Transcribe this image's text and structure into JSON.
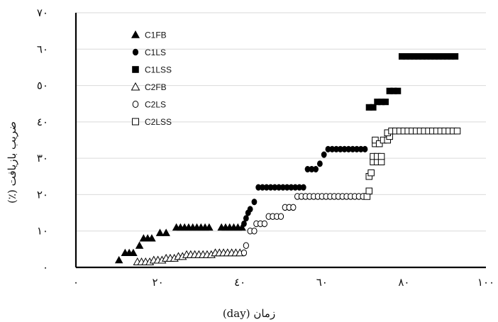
{
  "chart_data": {
    "type": "scatter",
    "title": "",
    "xlabel": "زمان (day)",
    "ylabel": "ضریب بازیافت (٪)",
    "xlim": [
      0,
      100
    ],
    "ylim": [
      0,
      70
    ],
    "x_ticks": [
      0,
      20,
      40,
      60,
      80,
      100
    ],
    "x_tick_labels": [
      "٠",
      "٢٠",
      "٤٠",
      "٦٠",
      "٨٠",
      "١٠٠"
    ],
    "y_ticks": [
      10,
      20,
      30,
      40,
      50,
      60,
      70
    ],
    "y_tick_labels": [
      "١٠",
      "٢٠",
      "٣٠",
      "٤٠",
      "٥٠",
      "٦٠",
      "٧٠"
    ],
    "y_origin_label": "٠",
    "grid": "horizontal",
    "legend_position": "top-left",
    "series": [
      {
        "name": "C1FB",
        "marker": "triangle",
        "filled": true,
        "color": "#000000",
        "points": [
          [
            10.5,
            2
          ],
          [
            12,
            4
          ],
          [
            13,
            4
          ],
          [
            14,
            4
          ],
          [
            15.5,
            6
          ],
          [
            16.5,
            8
          ],
          [
            17.5,
            8
          ],
          [
            18.5,
            8
          ],
          [
            20.5,
            9.5
          ],
          [
            22,
            9.5
          ],
          [
            24.5,
            11
          ],
          [
            25.5,
            11
          ],
          [
            26.5,
            11
          ],
          [
            27.5,
            11
          ],
          [
            28.5,
            11
          ],
          [
            29.5,
            11
          ],
          [
            30.5,
            11
          ],
          [
            31.5,
            11
          ],
          [
            32.5,
            11
          ],
          [
            35.5,
            11
          ],
          [
            36.5,
            11
          ],
          [
            37.5,
            11
          ],
          [
            38.5,
            11
          ],
          [
            39.5,
            11
          ],
          [
            40.5,
            11
          ]
        ]
      },
      {
        "name": "C1LS",
        "marker": "circle",
        "filled": true,
        "color": "#000000",
        "points": [
          [
            41,
            12
          ],
          [
            41.5,
            13.5
          ],
          [
            42,
            15
          ],
          [
            42.5,
            16
          ],
          [
            43.5,
            18
          ],
          [
            44.5,
            22
          ],
          [
            45.5,
            22
          ],
          [
            46.5,
            22
          ],
          [
            47.5,
            22
          ],
          [
            48.5,
            22
          ],
          [
            49.5,
            22
          ],
          [
            50.5,
            22
          ],
          [
            51.5,
            22
          ],
          [
            52.5,
            22
          ],
          [
            53.5,
            22
          ],
          [
            54.5,
            22
          ],
          [
            55.5,
            22
          ],
          [
            56.5,
            27
          ],
          [
            57.5,
            27
          ],
          [
            58.5,
            27
          ],
          [
            59.5,
            28.5
          ],
          [
            60.5,
            31
          ],
          [
            61.5,
            32.5
          ],
          [
            62.5,
            32.5
          ],
          [
            63.5,
            32.5
          ],
          [
            64.5,
            32.5
          ],
          [
            65.5,
            32.5
          ],
          [
            66.5,
            32.5
          ],
          [
            67.5,
            32.5
          ],
          [
            68.5,
            32.5
          ],
          [
            69.5,
            32.5
          ],
          [
            70.5,
            32.5
          ]
        ]
      },
      {
        "name": "C1LSS",
        "marker": "square",
        "filled": true,
        "color": "#000000",
        "points": [
          [
            71.5,
            44
          ],
          [
            72.5,
            44
          ],
          [
            73.5,
            45.5
          ],
          [
            74.5,
            45.5
          ],
          [
            75.5,
            45.5
          ],
          [
            76.5,
            48.5
          ],
          [
            77.5,
            48.5
          ],
          [
            78.5,
            48.5
          ],
          [
            79.5,
            58
          ],
          [
            80.5,
            58
          ],
          [
            81.5,
            58
          ],
          [
            82.5,
            58
          ],
          [
            83.5,
            58
          ],
          [
            84.5,
            58
          ],
          [
            85.5,
            58
          ],
          [
            86.5,
            58
          ],
          [
            87.5,
            58
          ],
          [
            88.5,
            58
          ],
          [
            89.5,
            58
          ],
          [
            90.5,
            58
          ],
          [
            91.5,
            58
          ],
          [
            92.5,
            58
          ]
        ]
      },
      {
        "name": "C2FB",
        "marker": "triangle",
        "filled": false,
        "color": "#000000",
        "points": [
          [
            15,
            1.5
          ],
          [
            16,
            1.5
          ],
          [
            17,
            1.5
          ],
          [
            18,
            1.5
          ],
          [
            19,
            2
          ],
          [
            20,
            2
          ],
          [
            21,
            2
          ],
          [
            22,
            2.5
          ],
          [
            23,
            2.5
          ],
          [
            24,
            2.5
          ],
          [
            25,
            3
          ],
          [
            26,
            3
          ],
          [
            27,
            3.5
          ],
          [
            28,
            3.5
          ],
          [
            29,
            3.5
          ],
          [
            30,
            3.5
          ],
          [
            31,
            3.5
          ],
          [
            32,
            3.5
          ],
          [
            33,
            3.5
          ],
          [
            34,
            4
          ],
          [
            35,
            4
          ],
          [
            36,
            4
          ],
          [
            37,
            4
          ],
          [
            38,
            4
          ],
          [
            39,
            4
          ],
          [
            40,
            4
          ]
        ]
      },
      {
        "name": "C2LS",
        "marker": "circle",
        "filled": false,
        "color": "#000000",
        "points": [
          [
            41,
            4
          ],
          [
            41.5,
            6
          ],
          [
            42.5,
            10
          ],
          [
            43.5,
            10
          ],
          [
            44,
            12
          ],
          [
            45,
            12
          ],
          [
            46,
            12
          ],
          [
            47,
            14
          ],
          [
            48,
            14
          ],
          [
            49,
            14
          ],
          [
            50,
            14
          ],
          [
            51,
            16.5
          ],
          [
            52,
            16.5
          ],
          [
            53,
            16.5
          ],
          [
            54,
            19.5
          ],
          [
            55,
            19.5
          ],
          [
            56,
            19.5
          ],
          [
            57,
            19.5
          ],
          [
            58,
            19.5
          ],
          [
            59,
            19.5
          ],
          [
            60,
            19.5
          ],
          [
            61,
            19.5
          ],
          [
            62,
            19.5
          ],
          [
            63,
            19.5
          ],
          [
            64,
            19.5
          ],
          [
            65,
            19.5
          ],
          [
            66,
            19.5
          ],
          [
            67,
            19.5
          ],
          [
            68,
            19.5
          ],
          [
            69,
            19.5
          ],
          [
            70,
            19.5
          ]
        ]
      },
      {
        "name": "C2LSS",
        "marker": "square",
        "filled": false,
        "color": "#000000",
        "points": [
          [
            71,
            19.5
          ],
          [
            71.5,
            21
          ],
          [
            71.5,
            25
          ],
          [
            72,
            26
          ],
          [
            72.5,
            29
          ],
          [
            72.5,
            30.5
          ],
          [
            73.5,
            29
          ],
          [
            73.5,
            30.5
          ],
          [
            74.5,
            29
          ],
          [
            74.5,
            30.5
          ],
          [
            73,
            34
          ],
          [
            73,
            35
          ],
          [
            74,
            34
          ],
          [
            75,
            35
          ],
          [
            76,
            35
          ],
          [
            76.5,
            36
          ],
          [
            76,
            37
          ],
          [
            77,
            37.5
          ],
          [
            78,
            37.5
          ],
          [
            79,
            37.5
          ],
          [
            80,
            37.5
          ],
          [
            81,
            37.5
          ],
          [
            82,
            37.5
          ],
          [
            83,
            37.5
          ],
          [
            84,
            37.5
          ],
          [
            85,
            37.5
          ],
          [
            86,
            37.5
          ],
          [
            87,
            37.5
          ],
          [
            88,
            37.5
          ],
          [
            89,
            37.5
          ],
          [
            90,
            37.5
          ],
          [
            91,
            37.5
          ],
          [
            92,
            37.5
          ],
          [
            93,
            37.5
          ]
        ]
      }
    ]
  }
}
